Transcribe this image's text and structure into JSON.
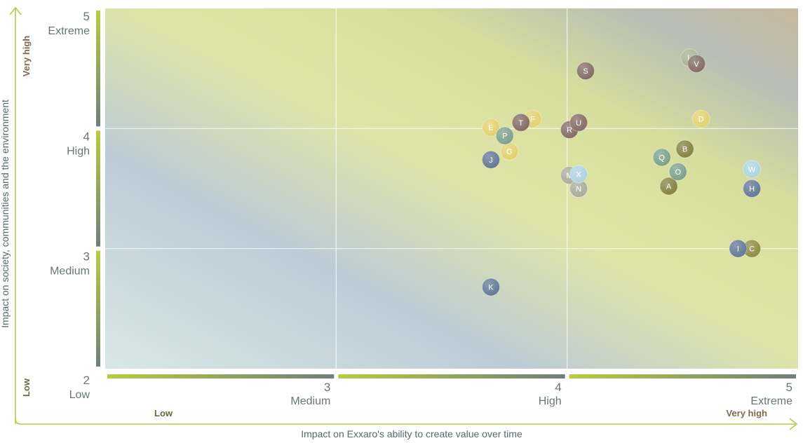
{
  "chart_data": {
    "type": "scatter",
    "xlabel": "Impact on Exxaro's ability to create value over time",
    "ylabel": "Impact on society, communities and the environment",
    "xlim": [
      2,
      5
    ],
    "ylim": [
      2,
      5
    ],
    "grid": true,
    "x_ticks": [
      {
        "value": 2,
        "num": "",
        "word": ""
      },
      {
        "value": 3,
        "num": "3",
        "word": "Medium"
      },
      {
        "value": 4,
        "num": "4",
        "word": "High"
      },
      {
        "value": 5,
        "num": "5",
        "word": "Extreme"
      }
    ],
    "y_ticks": [
      {
        "value": 2,
        "num": "2",
        "word": "Low"
      },
      {
        "value": 3,
        "num": "3",
        "word": "Medium"
      },
      {
        "value": 4,
        "num": "4",
        "word": "High"
      },
      {
        "value": 5,
        "num": "5",
        "word": "Extreme"
      }
    ],
    "x_level_labels": {
      "low": "Low",
      "high": "Very high"
    },
    "y_level_labels": {
      "low": "Low",
      "high": "Very high"
    },
    "points": [
      {
        "label": "A",
        "x": 4.44,
        "y": 3.52,
        "color": "#7f7f3c"
      },
      {
        "label": "B",
        "x": 4.51,
        "y": 3.83,
        "color": "#7f7f3c"
      },
      {
        "label": "C",
        "x": 4.8,
        "y": 3.0,
        "color": "#8a8a3c"
      },
      {
        "label": "D",
        "x": 4.58,
        "y": 4.08,
        "color": "#e1d06a"
      },
      {
        "label": "E",
        "x": 3.67,
        "y": 4.01,
        "color": "#e1d06a"
      },
      {
        "label": "F",
        "x": 3.85,
        "y": 4.08,
        "color": "#e1d06a"
      },
      {
        "label": "G",
        "x": 3.75,
        "y": 3.81,
        "color": "#e1d06a"
      },
      {
        "label": "H",
        "x": 4.8,
        "y": 3.5,
        "color": "#5f7591"
      },
      {
        "label": "I",
        "x": 4.74,
        "y": 3.0,
        "color": "#5f7591"
      },
      {
        "label": "J",
        "x": 3.67,
        "y": 3.74,
        "color": "#5f7591"
      },
      {
        "label": "K",
        "x": 3.67,
        "y": 2.68,
        "color": "#5f7591"
      },
      {
        "label": "L",
        "x": 4.53,
        "y": 4.59,
        "color": "#a6b18e"
      },
      {
        "label": "M",
        "x": 4.01,
        "y": 3.61,
        "color": "#a6aa95"
      },
      {
        "label": "N",
        "x": 4.05,
        "y": 3.5,
        "color": "#a6aa95"
      },
      {
        "label": "O",
        "x": 4.48,
        "y": 3.64,
        "color": "#7a9e86"
      },
      {
        "label": "P",
        "x": 3.73,
        "y": 3.94,
        "color": "#7a9e86"
      },
      {
        "label": "Q",
        "x": 4.41,
        "y": 3.76,
        "color": "#7a9e86"
      },
      {
        "label": "R",
        "x": 4.01,
        "y": 3.99,
        "color": "#7f685f"
      },
      {
        "label": "S",
        "x": 4.08,
        "y": 4.48,
        "color": "#7f685f"
      },
      {
        "label": "T",
        "x": 3.8,
        "y": 4.05,
        "color": "#7f685f"
      },
      {
        "label": "U",
        "x": 4.05,
        "y": 4.05,
        "color": "#7f685f"
      },
      {
        "label": "V",
        "x": 4.56,
        "y": 4.54,
        "color": "#7f685f"
      },
      {
        "label": "W",
        "x": 4.8,
        "y": 3.66,
        "color": "#a9d3dd"
      },
      {
        "label": "X",
        "x": 4.05,
        "y": 3.62,
        "color": "#a9d3dd"
      }
    ]
  },
  "colors": {
    "axis_arrow": "#b6c94a",
    "band_start": "#b9cc3f",
    "band_end": "#6f7f7b",
    "level_low": "#5f6a46",
    "level_high": "#7d6a4f"
  }
}
